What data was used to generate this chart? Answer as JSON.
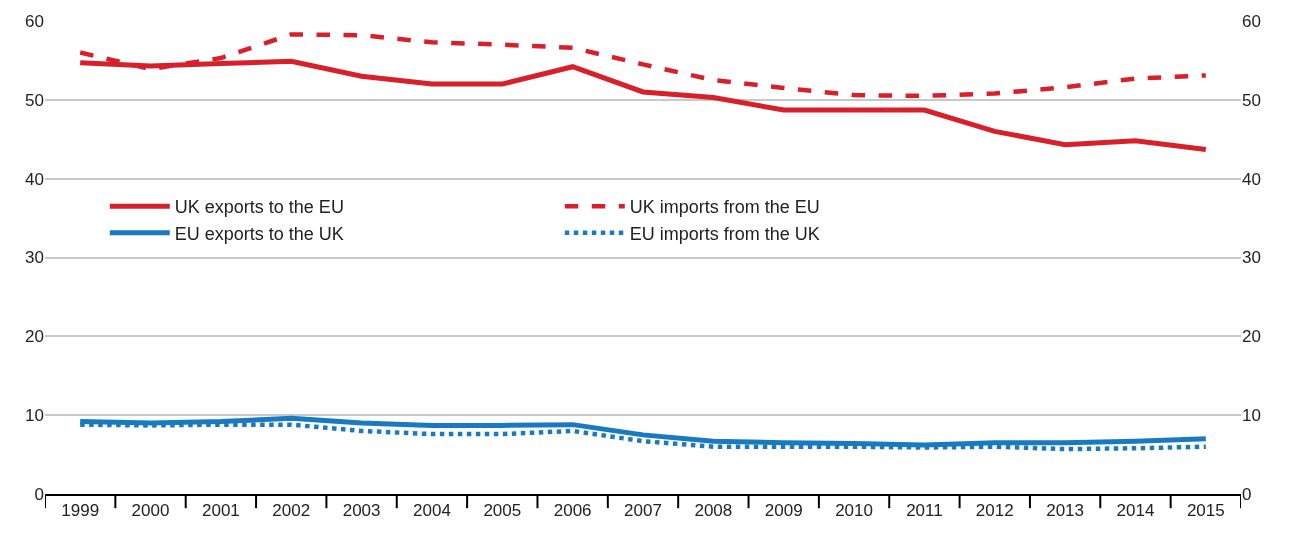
{
  "chart_data": {
    "type": "line",
    "categories": [
      "1999",
      "2000",
      "2001",
      "2002",
      "2003",
      "2004",
      "2005",
      "2006",
      "2007",
      "2008",
      "2009",
      "2010",
      "2011",
      "2012",
      "2013",
      "2014",
      "2015"
    ],
    "series": [
      {
        "name": "UK exports to the EU",
        "color": "#d7202a",
        "line_style": "solid",
        "values": [
          54.7,
          54.3,
          54.6,
          54.9,
          53.0,
          52.0,
          52.0,
          54.2,
          51.0,
          50.3,
          48.7,
          48.7,
          48.7,
          46.0,
          44.3,
          44.8,
          43.7
        ]
      },
      {
        "name": "UK imports from the EU",
        "color": "#d7202a",
        "line_style": "dashed",
        "values": [
          56.0,
          53.9,
          55.3,
          58.3,
          58.2,
          57.3,
          57.0,
          56.6,
          54.5,
          52.5,
          51.5,
          50.6,
          50.5,
          50.8,
          51.6,
          52.7,
          53.1
        ]
      },
      {
        "name": "EU exports to the UK",
        "color": "#1a7ac0",
        "line_style": "solid",
        "values": [
          9.2,
          9.0,
          9.2,
          9.6,
          9.0,
          8.7,
          8.7,
          8.8,
          7.5,
          6.7,
          6.5,
          6.4,
          6.2,
          6.5,
          6.5,
          6.7,
          7.0
        ]
      },
      {
        "name": "EU imports from the UK",
        "color": "#1a7ac0",
        "line_style": "dotted",
        "values": [
          8.8,
          8.7,
          8.8,
          8.8,
          8.0,
          7.6,
          7.6,
          8.0,
          6.7,
          6.0,
          6.0,
          6.0,
          5.9,
          6.0,
          5.7,
          5.8,
          6.0
        ]
      }
    ],
    "ylim": [
      0,
      60
    ],
    "yticks": [
      0,
      10,
      20,
      30,
      40,
      50,
      60
    ],
    "y2lim": [
      0,
      60
    ],
    "y2ticks": [
      0,
      10,
      20,
      30,
      40,
      50,
      60
    ],
    "grid": "y",
    "legend": "left",
    "marker": "none"
  }
}
